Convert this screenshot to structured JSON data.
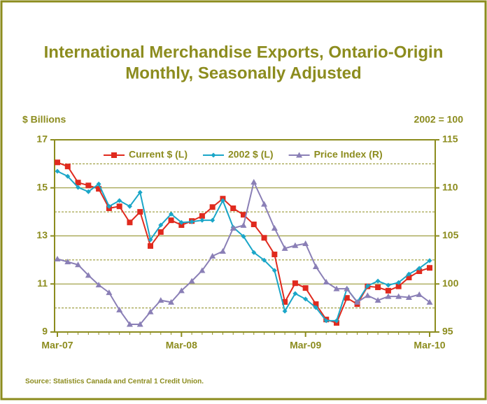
{
  "chart_data": {
    "type": "line",
    "title": "International Merchandise Exports, Ontario-Origin",
    "subtitle": "Monthly, Seasonally Adjusted",
    "y_label": "$ Billions",
    "y2_label": "2002 = 100",
    "source": "Source: Statistics Canada and Central 1 Credit Union.",
    "categories": [
      "Mar-07",
      null,
      null,
      null,
      null,
      null,
      null,
      null,
      null,
      null,
      null,
      null,
      "Mar-08",
      null,
      null,
      null,
      null,
      null,
      null,
      null,
      null,
      null,
      null,
      null,
      "Mar-09",
      null,
      null,
      null,
      null,
      null,
      null,
      null,
      null,
      null,
      null,
      null,
      "Mar-10"
    ],
    "ylim": [
      9,
      17
    ],
    "yticks": [
      9,
      11,
      13,
      15,
      17
    ],
    "minor_yticks": [
      10,
      12,
      14,
      16
    ],
    "y2lim": [
      95,
      115
    ],
    "y2ticks": [
      95,
      100,
      105,
      110,
      115
    ],
    "grid": true,
    "legend": "top",
    "series": [
      {
        "name": "Current $ (L)",
        "color": "#e02a1e",
        "marker": "square",
        "values": [
          16.06,
          15.89,
          15.22,
          15.1,
          14.96,
          14.15,
          14.23,
          13.56,
          14.0,
          12.58,
          13.16,
          13.65,
          13.45,
          13.62,
          13.83,
          14.2,
          14.55,
          14.15,
          13.88,
          13.48,
          12.92,
          12.23,
          10.25,
          11.03,
          10.83,
          10.16,
          9.52,
          9.38,
          10.42,
          10.16,
          10.9,
          10.86,
          10.72,
          10.9,
          11.27,
          11.53,
          11.67
        ]
      },
      {
        "name": "2002 $ (L)",
        "color": "#1aa6c8",
        "marker": "diamond",
        "values": [
          15.69,
          15.48,
          15.02,
          14.84,
          15.16,
          14.23,
          14.47,
          14.23,
          14.81,
          12.84,
          13.45,
          13.91,
          13.56,
          13.59,
          13.65,
          13.65,
          14.47,
          13.36,
          12.98,
          12.31,
          11.99,
          11.56,
          9.87,
          10.6,
          10.37,
          10.02,
          9.47,
          9.47,
          10.8,
          10.25,
          10.92,
          11.12,
          10.95,
          11.06,
          11.41,
          11.65,
          11.97
        ]
      },
      {
        "name": "Price Index (R)",
        "color": "#8a7fb6",
        "marker": "triangle",
        "axis": "y2",
        "values": [
          102.6,
          102.3,
          102.0,
          100.9,
          99.9,
          99.1,
          97.3,
          95.8,
          95.8,
          97.1,
          98.3,
          98.1,
          99.3,
          100.3,
          101.4,
          102.9,
          103.4,
          105.8,
          106.1,
          110.6,
          108.3,
          105.8,
          103.7,
          104.0,
          104.2,
          101.8,
          100.2,
          99.5,
          99.5,
          98.1,
          98.8,
          98.3,
          98.7,
          98.7,
          98.6,
          98.9,
          98.1
        ]
      }
    ]
  }
}
